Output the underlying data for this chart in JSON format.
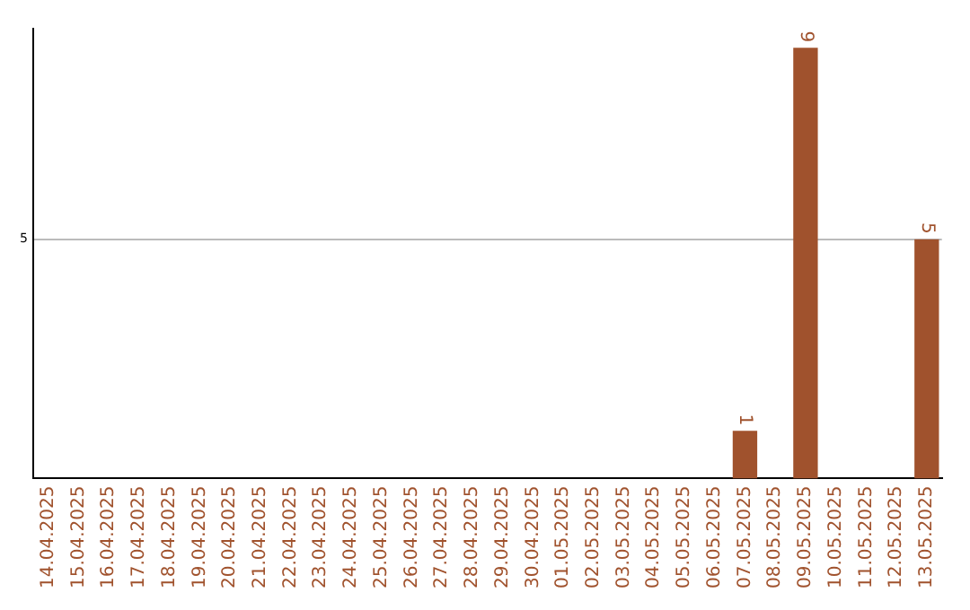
{
  "chart_data": {
    "type": "bar",
    "categories": [
      "14.04.2025",
      "15.04.2025",
      "16.04.2025",
      "17.04.2025",
      "18.04.2025",
      "19.04.2025",
      "20.04.2025",
      "21.04.2025",
      "22.04.2025",
      "23.04.2025",
      "24.04.2025",
      "25.04.2025",
      "26.04.2025",
      "27.04.2025",
      "28.04.2025",
      "29.04.2025",
      "30.04.2025",
      "01.05.2025",
      "02.05.2025",
      "03.05.2025",
      "04.05.2025",
      "05.05.2025",
      "06.05.2025",
      "07.05.2025",
      "08.05.2025",
      "09.05.2025",
      "10.05.2025",
      "11.05.2025",
      "12.05.2025",
      "13.05.2025"
    ],
    "values": [
      null,
      null,
      null,
      null,
      null,
      null,
      null,
      null,
      null,
      null,
      null,
      null,
      null,
      null,
      null,
      null,
      null,
      null,
      null,
      null,
      null,
      null,
      null,
      1,
      null,
      9,
      null,
      null,
      null,
      5
    ],
    "color": "#a0522d",
    "ylim": [
      0,
      9.4
    ],
    "yticks": [
      5
    ],
    "grid": "y",
    "legend": false,
    "data_labels": true
  }
}
